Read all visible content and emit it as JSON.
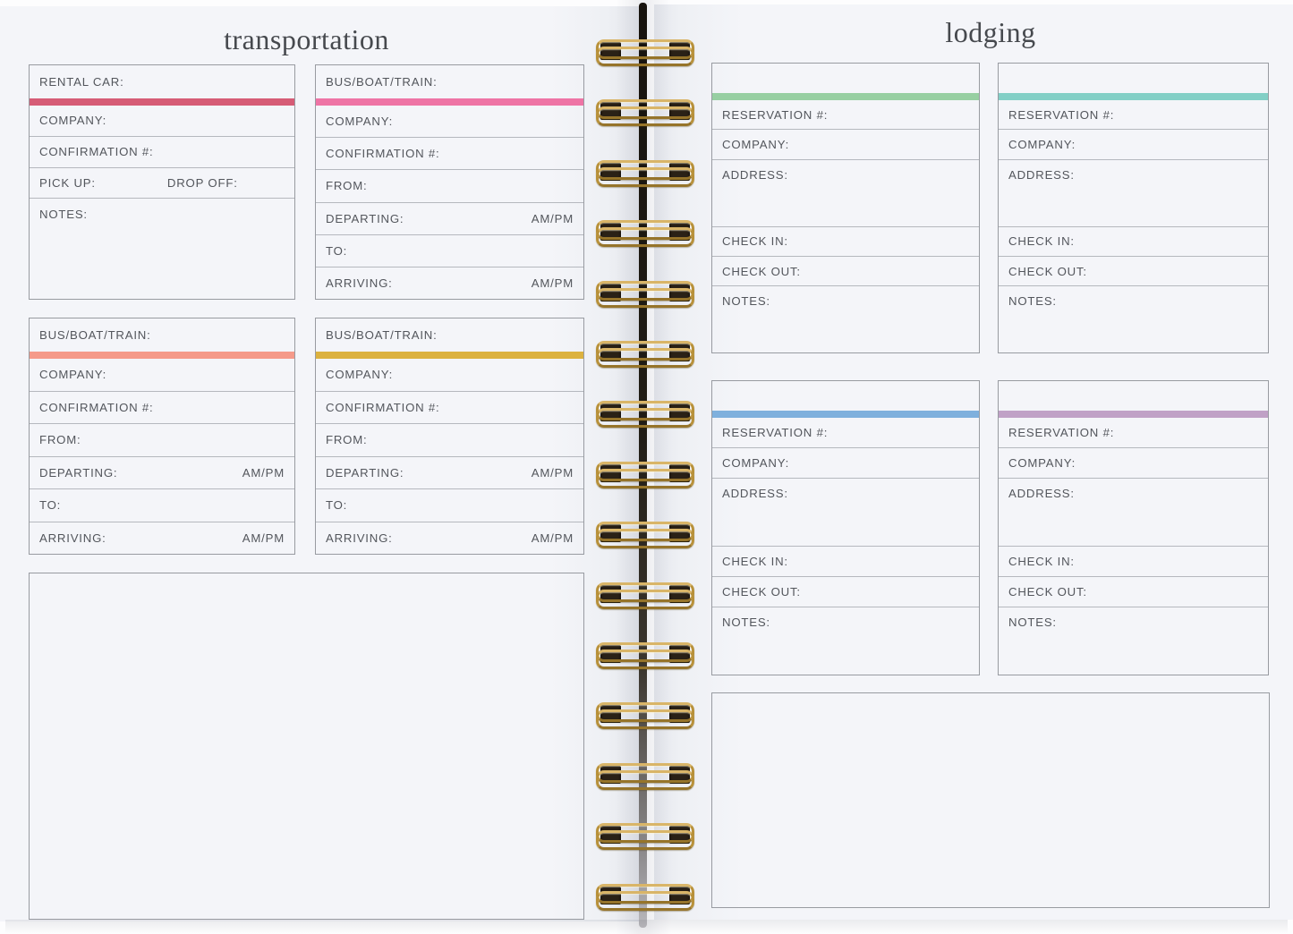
{
  "spread": {
    "binding": {
      "loop_count": 15,
      "wire_color": "#b8913a",
      "hole_color": "#2a2116"
    }
  },
  "transportation_page": {
    "title": "transportation",
    "boxes": [
      {
        "id": "rental-car",
        "header": "RENTAL CAR:",
        "accent_color": "#d65c76",
        "rows": [
          {
            "label": "COMPANY:"
          },
          {
            "label": "CONFIRMATION #:"
          },
          {
            "label": "PICK UP:",
            "label2": "DROP OFF:"
          },
          {
            "label": "NOTES:",
            "size": "xl"
          }
        ]
      },
      {
        "id": "bus-boat-train-1",
        "header": "BUS/BOAT/TRAIN:",
        "accent_color": "#ee74a5",
        "rows": [
          {
            "label": "COMPANY:"
          },
          {
            "label": "CONFIRMATION #:"
          },
          {
            "label": "FROM:"
          },
          {
            "label": "DEPARTING:",
            "right": "AM/PM"
          },
          {
            "label": "TO:"
          },
          {
            "label": "ARRIVING:",
            "right": "AM/PM"
          }
        ]
      },
      {
        "id": "bus-boat-train-2",
        "header": "BUS/BOAT/TRAIN:",
        "accent_color": "#f59a8a",
        "rows": [
          {
            "label": "COMPANY:"
          },
          {
            "label": "CONFIRMATION #:"
          },
          {
            "label": "FROM:"
          },
          {
            "label": "DEPARTING:",
            "right": "AM/PM"
          },
          {
            "label": "TO:"
          },
          {
            "label": "ARRIVING:",
            "right": "AM/PM"
          }
        ]
      },
      {
        "id": "bus-boat-train-3",
        "header": "BUS/BOAT/TRAIN:",
        "accent_color": "#dcb23f",
        "rows": [
          {
            "label": "COMPANY:"
          },
          {
            "label": "CONFIRMATION #:"
          },
          {
            "label": "FROM:"
          },
          {
            "label": "DEPARTING:",
            "right": "AM/PM"
          },
          {
            "label": "TO:"
          },
          {
            "label": "ARRIVING:",
            "right": "AM/PM"
          }
        ]
      }
    ]
  },
  "lodging_page": {
    "title": "lodging",
    "boxes": [
      {
        "id": "lodging-1",
        "header": "",
        "accent_color": "#97cfa2",
        "rows": [
          {
            "label": "RESERVATION #:"
          },
          {
            "label": "COMPANY:"
          },
          {
            "label": "ADDRESS:",
            "size": "lg"
          },
          {
            "label": "CHECK IN:"
          },
          {
            "label": "CHECK OUT:"
          },
          {
            "label": "NOTES:",
            "size": "lg"
          }
        ]
      },
      {
        "id": "lodging-2",
        "header": "",
        "accent_color": "#82cfc6",
        "rows": [
          {
            "label": "RESERVATION #:"
          },
          {
            "label": "COMPANY:"
          },
          {
            "label": "ADDRESS:",
            "size": "lg"
          },
          {
            "label": "CHECK IN:"
          },
          {
            "label": "CHECK OUT:"
          },
          {
            "label": "NOTES:",
            "size": "lg"
          }
        ]
      },
      {
        "id": "lodging-3",
        "header": "",
        "accent_color": "#7fb0dd",
        "rows": [
          {
            "label": "RESERVATION #:"
          },
          {
            "label": "COMPANY:"
          },
          {
            "label": "ADDRESS:",
            "size": "lg"
          },
          {
            "label": "CHECK IN:"
          },
          {
            "label": "CHECK OUT:"
          },
          {
            "label": "NOTES:",
            "size": "lg"
          }
        ]
      },
      {
        "id": "lodging-4",
        "header": "",
        "accent_color": "#c0a1c6",
        "rows": [
          {
            "label": "RESERVATION #:"
          },
          {
            "label": "COMPANY:"
          },
          {
            "label": "ADDRESS:",
            "size": "lg"
          },
          {
            "label": "CHECK IN:"
          },
          {
            "label": "CHECK OUT:"
          },
          {
            "label": "NOTES:",
            "size": "lg"
          }
        ]
      }
    ]
  }
}
